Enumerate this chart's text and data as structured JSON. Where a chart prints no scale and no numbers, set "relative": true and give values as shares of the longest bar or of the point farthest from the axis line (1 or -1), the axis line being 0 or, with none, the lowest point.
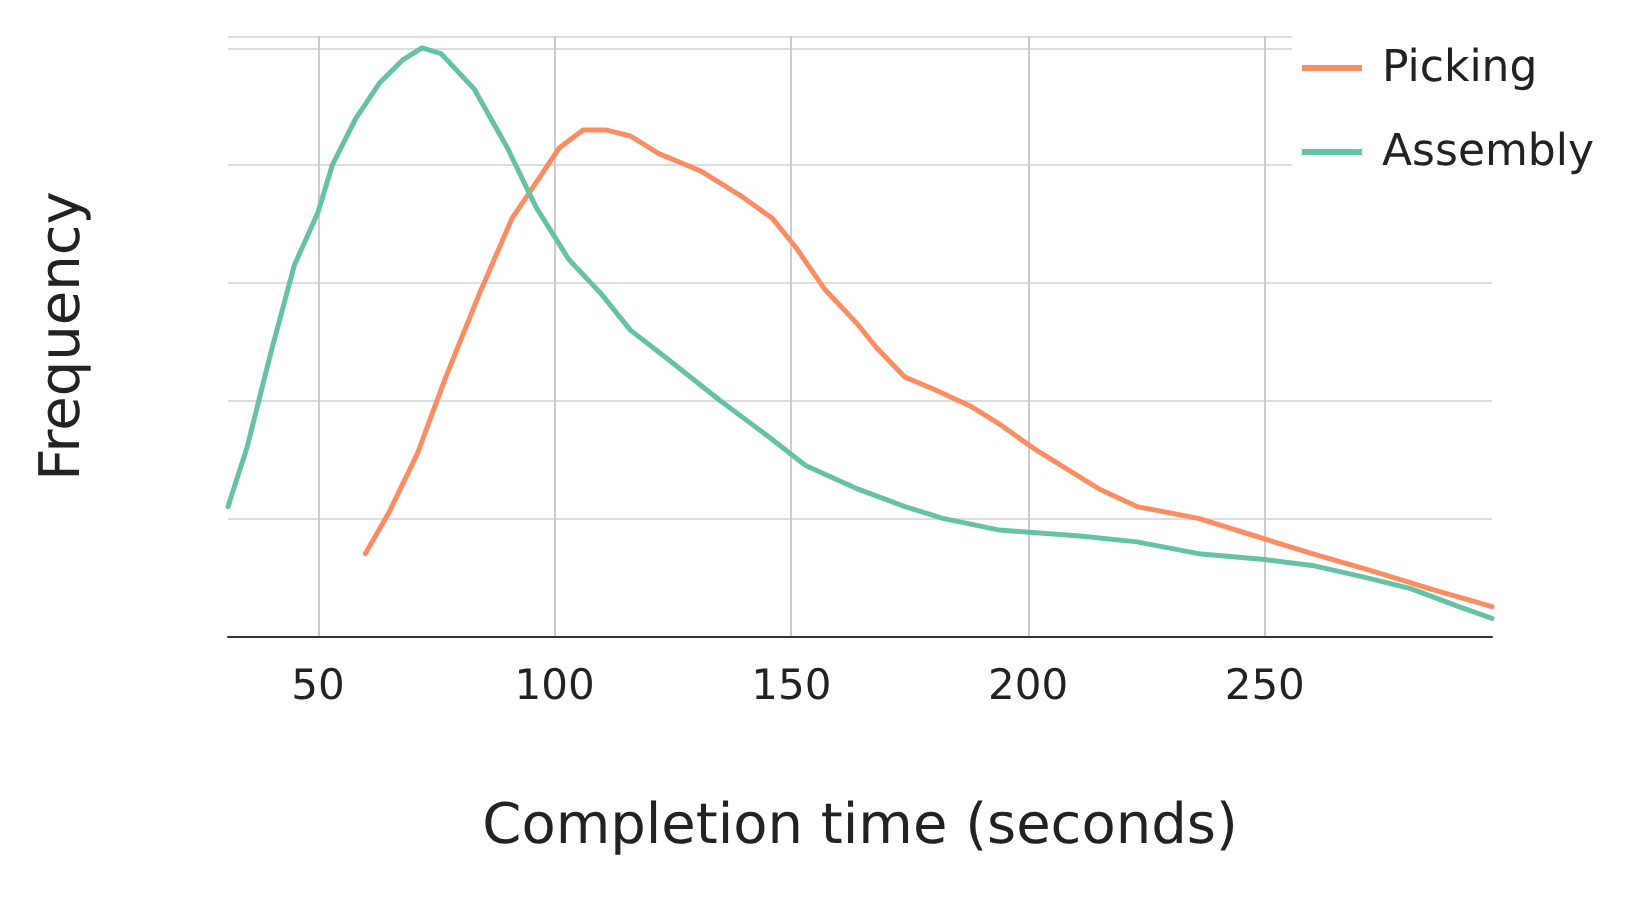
{
  "chart_data": {
    "type": "line",
    "relative": true,
    "xlabel": "Completion time (seconds)",
    "ylabel": "Frequency",
    "xlim": [
      31,
      298
    ],
    "xticks": [
      50,
      100,
      150,
      200,
      250
    ],
    "grid": true,
    "legend": "top right",
    "marker": "none",
    "line_style": "solid",
    "series": [
      {
        "name": "Picking",
        "color": "#fc8d62",
        "x": [
          60,
          65,
          71,
          77,
          84,
          91,
          96,
          101,
          106,
          111,
          116,
          122,
          131,
          139,
          146,
          151,
          157,
          164,
          168,
          174,
          180,
          188,
          194,
          201,
          209,
          215,
          223,
          236,
          248,
          260,
          273,
          285,
          298
        ],
        "values": [
          0.14,
          0.21,
          0.31,
          0.44,
          0.58,
          0.71,
          0.77,
          0.83,
          0.86,
          0.86,
          0.85,
          0.82,
          0.79,
          0.75,
          0.71,
          0.66,
          0.59,
          0.53,
          0.49,
          0.44,
          0.42,
          0.39,
          0.36,
          0.32,
          0.28,
          0.25,
          0.22,
          0.2,
          0.17,
          0.14,
          0.11,
          0.08,
          0.05
        ]
      },
      {
        "name": "Assembly",
        "color": "#66c2a5",
        "x": [
          31,
          35,
          40,
          45,
          50,
          53,
          58,
          63,
          68,
          72,
          76,
          83,
          90,
          96,
          103,
          110,
          116,
          124,
          135,
          145,
          153,
          164,
          174,
          182,
          194,
          211,
          223,
          236,
          250,
          260,
          271,
          281,
          291,
          298
        ],
        "values": [
          0.22,
          0.32,
          0.48,
          0.63,
          0.72,
          0.8,
          0.88,
          0.94,
          0.98,
          1,
          0.99,
          0.93,
          0.83,
          0.73,
          0.64,
          0.58,
          0.52,
          0.47,
          0.4,
          0.34,
          0.29,
          0.25,
          0.22,
          0.2,
          0.18,
          0.17,
          0.16,
          0.14,
          0.13,
          0.12,
          0.1,
          0.08,
          0.05,
          0.03
        ]
      }
    ]
  }
}
